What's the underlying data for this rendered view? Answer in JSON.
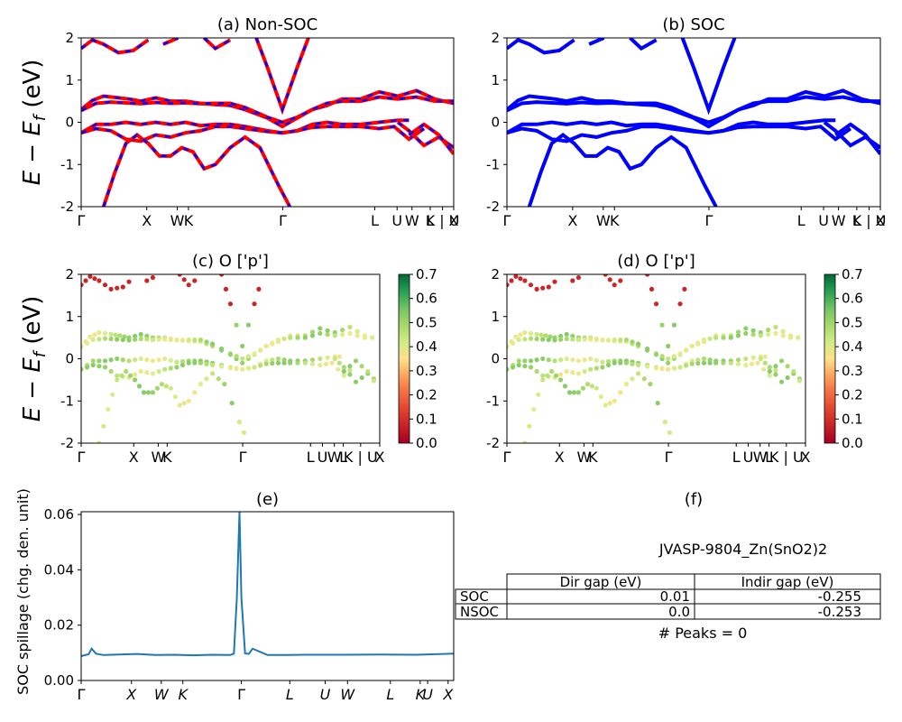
{
  "figure": {
    "panels": {
      "a": {
        "title": "(a) Non-SOC"
      },
      "b": {
        "title": "(b) SOC"
      },
      "c": {
        "title": "(c)  O ['p']"
      },
      "d": {
        "title": "(d) O ['p']"
      },
      "e": {
        "title": "(e)"
      },
      "f": {
        "title": "(f)"
      }
    },
    "ylabel_band": "E − E_f (eV)",
    "ylabel_band_parts": {
      "main": "E − E",
      "sub": "f",
      "unit": " (eV)"
    },
    "ylabel_spillage": "SOC spillage (chg. den. unit)",
    "colorbar_ticks": [
      "0.0",
      "0.1",
      "0.2",
      "0.3",
      "0.4",
      "0.5",
      "0.6",
      "0.7"
    ],
    "colors": {
      "nonsoc_line": "#ff0000",
      "nonsoc_dash": "#0000ff",
      "soc_line": "#0000ff",
      "spillage_line": "#1f77b4"
    },
    "info_panel": {
      "material": "JVASP-9804_Zn(SnO2)2",
      "table": {
        "headers": [
          "",
          "Dir gap (eV)",
          "Indir gap (eV)"
        ],
        "rows": [
          [
            "SOC",
            "0.01",
            "-0.255"
          ],
          [
            "NSOC",
            "0.0",
            "-0.253"
          ]
        ]
      },
      "peaks": "# Peaks = 0"
    }
  },
  "chart_data": [
    {
      "id": "a",
      "type": "line",
      "title": "(a) Non-SOC",
      "ylabel": "E − E_f (eV)",
      "ylim": [
        -2,
        2
      ],
      "xlim": [
        0,
        1
      ],
      "yticks": [
        "-2",
        "-1",
        "0",
        "1",
        "2"
      ],
      "kpath_labels": [
        "Γ",
        "X",
        "W",
        "K",
        "Γ",
        "L",
        "U",
        "W",
        "L",
        "K | U",
        "X"
      ],
      "kpath_positions": [
        0,
        0.176,
        0.258,
        0.288,
        0.541,
        0.788,
        0.848,
        0.888,
        0.937,
        0.97,
        1.0
      ],
      "series_note": "Non-SOC bands (red) overlaid with SOC bands (blue dashed)"
    },
    {
      "id": "b",
      "type": "line",
      "title": "(b) SOC",
      "ylim": [
        -2,
        2
      ],
      "xlim": [
        0,
        1
      ],
      "yticks": [
        "-2",
        "-1",
        "0",
        "1",
        "2"
      ],
      "kpath_labels": [
        "Γ",
        "X",
        "W",
        "K",
        "Γ",
        "L",
        "U",
        "W",
        "L",
        "K | U",
        "X"
      ],
      "kpath_positions": [
        0,
        0.176,
        0.258,
        0.288,
        0.541,
        0.788,
        0.848,
        0.888,
        0.937,
        0.97,
        1.0
      ]
    },
    {
      "id": "c",
      "type": "scatter",
      "title": "(c)  O ['p']",
      "ylim": [
        -2,
        2
      ],
      "xlim": [
        0,
        1
      ],
      "colorbar_range": [
        0.0,
        0.7
      ],
      "colormap": "RdYlGn",
      "kpath_labels": [
        "Γ",
        "X",
        "W",
        "K",
        "Γ",
        "L",
        "U",
        "W",
        "L",
        "K | U",
        "X"
      ],
      "kpath_positions": [
        0,
        0.176,
        0.258,
        0.288,
        0.541,
        0.768,
        0.808,
        0.848,
        0.878,
        0.936,
        1.0
      ]
    },
    {
      "id": "d",
      "type": "scatter",
      "title": "(d) O ['p']",
      "ylim": [
        -2,
        2
      ],
      "xlim": [
        0,
        1
      ],
      "colorbar_range": [
        0.0,
        0.7
      ],
      "colormap": "RdYlGn",
      "kpath_labels": [
        "Γ",
        "X",
        "W",
        "K",
        "Γ",
        "L",
        "U",
        "W",
        "L",
        "K | U",
        "X"
      ],
      "kpath_positions": [
        0,
        0.176,
        0.258,
        0.288,
        0.541,
        0.768,
        0.808,
        0.848,
        0.878,
        0.936,
        1.0
      ]
    },
    {
      "id": "e",
      "type": "line",
      "title": "(e)",
      "ylabel": "SOC spillage (chg. den. unit)",
      "ylim": [
        0.0,
        0.061
      ],
      "yticks": [
        "0.00",
        "0.02",
        "0.04",
        "0.06"
      ],
      "kpath_labels": [
        "Γ",
        "X",
        "W",
        "K",
        "Γ",
        "L",
        "U",
        "W",
        "L",
        "K",
        "U",
        "X"
      ],
      "kpath_positions": [
        0,
        0.135,
        0.215,
        0.273,
        0.43,
        0.56,
        0.655,
        0.715,
        0.83,
        0.91,
        0.93,
        0.985
      ],
      "x": [
        0,
        0.02,
        0.028,
        0.04,
        0.06,
        0.1,
        0.15,
        0.2,
        0.25,
        0.3,
        0.35,
        0.4,
        0.41,
        0.418,
        0.425,
        0.43,
        0.44,
        0.45,
        0.46,
        0.5,
        0.55,
        0.6,
        0.7,
        0.8,
        0.9,
        1.0
      ],
      "y": [
        0.0088,
        0.0095,
        0.0115,
        0.0097,
        0.0092,
        0.0094,
        0.0096,
        0.0092,
        0.0093,
        0.0091,
        0.0093,
        0.0092,
        0.0097,
        0.03,
        0.061,
        0.03,
        0.0098,
        0.0096,
        0.0115,
        0.0092,
        0.0092,
        0.0093,
        0.0093,
        0.0094,
        0.0093,
        0.0097
      ]
    }
  ]
}
